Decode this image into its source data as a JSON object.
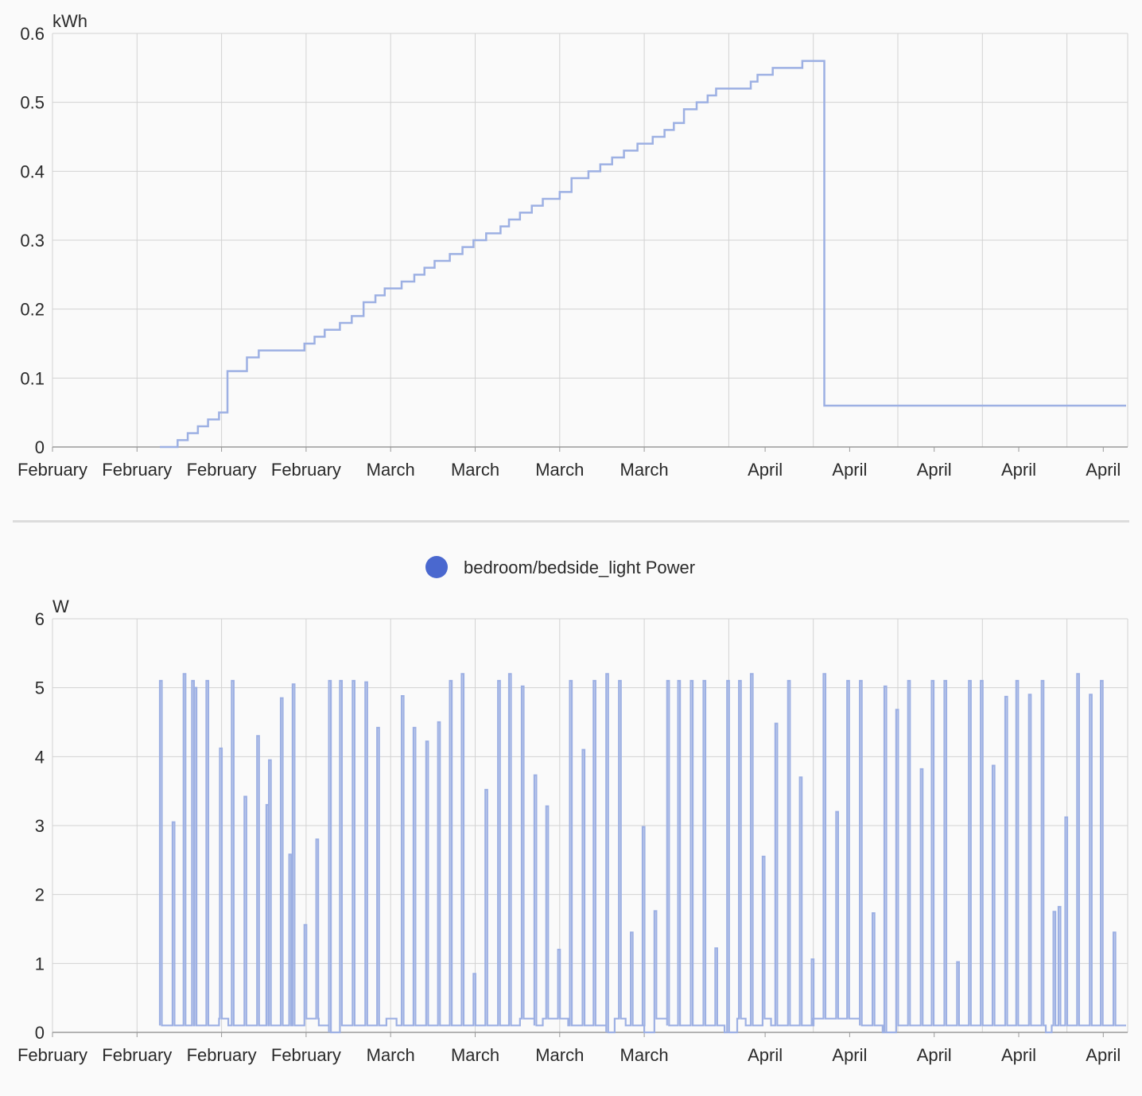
{
  "colors": {
    "series": "#9db0e3",
    "legend_dot": "#4a68cf",
    "grid": "#d2d2d2",
    "axis": "#999999"
  },
  "chart_data": [
    {
      "type": "line",
      "step": true,
      "unit_label": "kWh",
      "x_tick_labels": [
        "February",
        "February",
        "February",
        "February",
        "March",
        "March",
        "March",
        "March",
        "April",
        "April",
        "April",
        "April",
        "April"
      ],
      "x_tick_index": [
        0,
        1,
        2,
        3,
        4,
        5,
        6,
        7,
        8.43,
        9.43,
        10.43,
        11.43,
        12.43
      ],
      "y_ticks": [
        0,
        0.1,
        0.2,
        0.3,
        0.4,
        0.5,
        0.6
      ],
      "ylim": [
        0,
        0.6
      ],
      "xlim": [
        0,
        12.7
      ],
      "grid": true,
      "legend": "none",
      "series": [
        {
          "x": [
            1.27,
            1.48,
            1.6,
            1.72,
            1.84,
            1.97,
            2.07,
            2.3,
            2.44,
            2.98,
            3.1,
            3.22,
            3.4,
            3.54,
            3.68,
            3.82,
            3.93,
            4.13,
            4.28,
            4.4,
            4.52,
            4.7,
            4.85,
            4.98,
            5.13,
            5.3,
            5.4,
            5.53,
            5.67,
            5.8,
            6.0,
            6.14,
            6.34,
            6.48,
            6.62,
            6.76,
            6.92,
            7.1,
            7.24,
            7.35,
            7.47,
            7.62,
            7.75,
            7.85,
            8.26,
            8.34,
            8.52,
            8.87,
            9.13,
            9.3,
            9.43,
            9.84,
            10.0,
            10.1,
            10.24,
            10.34
          ],
          "y": [
            0,
            0.01,
            0.02,
            0.03,
            0.04,
            0.05,
            0.11,
            0.13,
            0.14,
            0.15,
            0.16,
            0.17,
            0.18,
            0.19,
            0.21,
            0.22,
            0.23,
            0.24,
            0.25,
            0.26,
            0.27,
            0.28,
            0.29,
            0.3,
            0.31,
            0.32,
            0.33,
            0.34,
            0.35,
            0.36,
            0.37,
            0.39,
            0.4,
            0.41,
            0.42,
            0.43,
            0.44,
            0.45,
            0.46,
            0.47,
            0.49,
            0.5,
            0.51,
            0.52,
            0.53,
            0.54,
            0.55,
            0.56,
            0.06,
            0.06,
            0.06,
            0.06,
            0.06,
            0.06,
            0.06,
            0.06
          ],
          "x_end": 12.7
        }
      ]
    },
    {
      "type": "line",
      "step": true,
      "unit_label": "W",
      "x_tick_labels": [
        "February",
        "February",
        "February",
        "February",
        "March",
        "March",
        "March",
        "March",
        "April",
        "April",
        "April",
        "April",
        "April"
      ],
      "x_tick_index": [
        0,
        1,
        2,
        3,
        4,
        5,
        6,
        7,
        8.43,
        9.43,
        10.43,
        11.43,
        12.43
      ],
      "y_ticks": [
        0,
        1,
        2,
        3,
        4,
        5,
        6
      ],
      "ylim": [
        0,
        6
      ],
      "xlim": [
        0,
        12.7
      ],
      "grid": true,
      "legend": "top-center",
      "baseline": 0.1,
      "series": [
        {
          "name": "bedroom/bedside_light Power",
          "spikes": [
            [
              1.27,
              5.1
            ],
            [
              1.42,
              3.05
            ],
            [
              1.55,
              5.2
            ],
            [
              1.65,
              5.1
            ],
            [
              1.68,
              5.0
            ],
            [
              1.82,
              5.1
            ],
            [
              1.98,
              4.12
            ],
            [
              2.12,
              5.1
            ],
            [
              2.27,
              3.42
            ],
            [
              2.42,
              4.3
            ],
            [
              2.53,
              3.3
            ],
            [
              2.56,
              3.95
            ],
            [
              2.7,
              4.85
            ],
            [
              2.8,
              2.58
            ],
            [
              2.84,
              5.05
            ],
            [
              2.98,
              1.56
            ],
            [
              3.12,
              2.8
            ],
            [
              3.27,
              5.1
            ],
            [
              3.4,
              5.1
            ],
            [
              3.55,
              5.1
            ],
            [
              3.7,
              5.08
            ],
            [
              3.84,
              4.42
            ],
            [
              4.13,
              4.88
            ],
            [
              4.27,
              4.42
            ],
            [
              4.42,
              4.22
            ],
            [
              4.56,
              4.5
            ],
            [
              4.7,
              5.1
            ],
            [
              4.84,
              5.2
            ],
            [
              4.98,
              0.85
            ],
            [
              5.12,
              3.52
            ],
            [
              5.27,
              5.1
            ],
            [
              5.4,
              5.2
            ],
            [
              5.55,
              5.02
            ],
            [
              5.7,
              3.73
            ],
            [
              5.84,
              3.28
            ],
            [
              5.98,
              1.2
            ],
            [
              6.12,
              5.1
            ],
            [
              6.27,
              4.1
            ],
            [
              6.4,
              5.1
            ],
            [
              6.55,
              5.2
            ],
            [
              6.7,
              5.1
            ],
            [
              6.84,
              1.45
            ],
            [
              6.98,
              2.98
            ],
            [
              7.12,
              1.76
            ],
            [
              7.27,
              5.1
            ],
            [
              7.4,
              5.1
            ],
            [
              7.55,
              5.1
            ],
            [
              7.7,
              5.1
            ],
            [
              7.84,
              1.22
            ],
            [
              7.98,
              5.1
            ],
            [
              8.12,
              5.1
            ],
            [
              8.26,
              5.2
            ],
            [
              8.4,
              2.55
            ],
            [
              8.55,
              4.48
            ],
            [
              8.7,
              5.1
            ],
            [
              8.84,
              3.7
            ],
            [
              8.98,
              1.06
            ],
            [
              9.12,
              5.2
            ],
            [
              9.27,
              3.2
            ],
            [
              9.4,
              5.1
            ],
            [
              9.55,
              5.1
            ],
            [
              9.7,
              1.73
            ],
            [
              9.84,
              5.02
            ],
            [
              9.98,
              4.68
            ],
            [
              10.12,
              5.1
            ],
            [
              10.27,
              3.82
            ],
            [
              10.4,
              5.1
            ],
            [
              10.55,
              5.1
            ],
            [
              10.7,
              1.02
            ],
            [
              10.84,
              5.1
            ],
            [
              10.98,
              5.1
            ],
            [
              11.12,
              3.87
            ],
            [
              11.27,
              4.87
            ],
            [
              11.4,
              5.1
            ],
            [
              11.55,
              4.9
            ],
            [
              11.7,
              5.1
            ],
            [
              11.84,
              1.75
            ],
            [
              11.9,
              1.82
            ],
            [
              11.98,
              3.12
            ],
            [
              12.12,
              5.2
            ],
            [
              12.27,
              4.9
            ],
            [
              12.4,
              5.1
            ],
            [
              12.55,
              1.45
            ]
          ],
          "level_changes": [
            [
              1.27,
              0.1
            ],
            [
              1.97,
              0.2
            ],
            [
              2.08,
              0.1
            ],
            [
              2.98,
              0.2
            ],
            [
              3.15,
              0.1
            ],
            [
              3.27,
              0.0
            ],
            [
              3.4,
              0.1
            ],
            [
              3.95,
              0.2
            ],
            [
              4.07,
              0.1
            ],
            [
              5.53,
              0.2
            ],
            [
              5.7,
              0.1
            ],
            [
              5.8,
              0.2
            ],
            [
              6.1,
              0.1
            ],
            [
              6.55,
              0.0
            ],
            [
              6.65,
              0.2
            ],
            [
              6.78,
              0.1
            ],
            [
              7.0,
              0.0
            ],
            [
              7.12,
              0.2
            ],
            [
              7.27,
              0.1
            ],
            [
              7.95,
              0.0
            ],
            [
              8.1,
              0.2
            ],
            [
              8.2,
              0.1
            ],
            [
              8.4,
              0.2
            ],
            [
              8.5,
              0.1
            ],
            [
              9.0,
              0.2
            ],
            [
              9.3,
              0.2
            ],
            [
              9.55,
              0.1
            ],
            [
              9.82,
              0.0
            ],
            [
              9.98,
              0.1
            ],
            [
              11.75,
              0.0
            ],
            [
              11.82,
              0.1
            ]
          ]
        }
      ]
    }
  ]
}
